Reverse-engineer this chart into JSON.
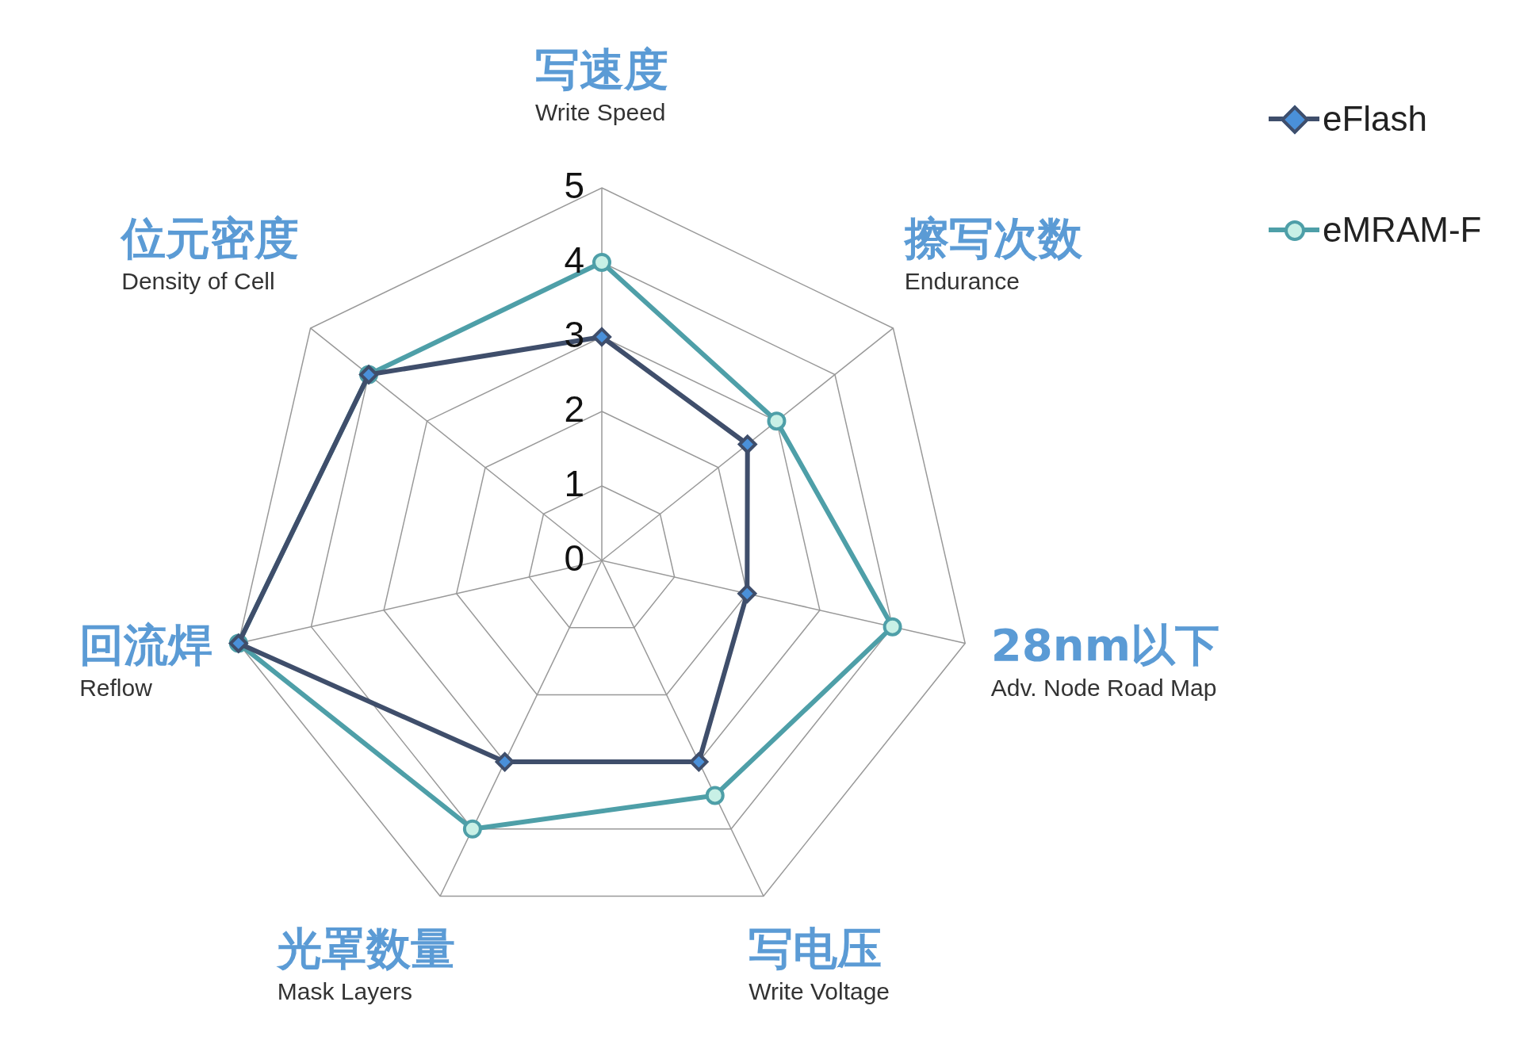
{
  "chart_data": {
    "type": "radar",
    "categories": [
      "写速度\nWrite Speed",
      "擦写次数\nEndurance",
      "28nm以下\nAdv. Node Road Map",
      "写电压\nWrite Voltage",
      "光罩数量\nMask Layers",
      "回流焊\nReflow",
      "位元密度\nDensity of Cell"
    ],
    "series": [
      {
        "name": "eFlash",
        "color": "#3f4e6b",
        "marker": "diamond",
        "values": [
          3,
          2.5,
          2,
          3,
          3,
          5,
          4
        ]
      },
      {
        "name": "eMRAM-F",
        "color": "#4e9fa8",
        "marker": "circle",
        "values": [
          4,
          3,
          4,
          3.5,
          4,
          5,
          4
        ]
      }
    ],
    "ylim": [
      0,
      5
    ],
    "yticks": [
      0,
      1,
      2,
      3,
      4,
      5
    ],
    "grid": true,
    "legend": "top right"
  }
}
